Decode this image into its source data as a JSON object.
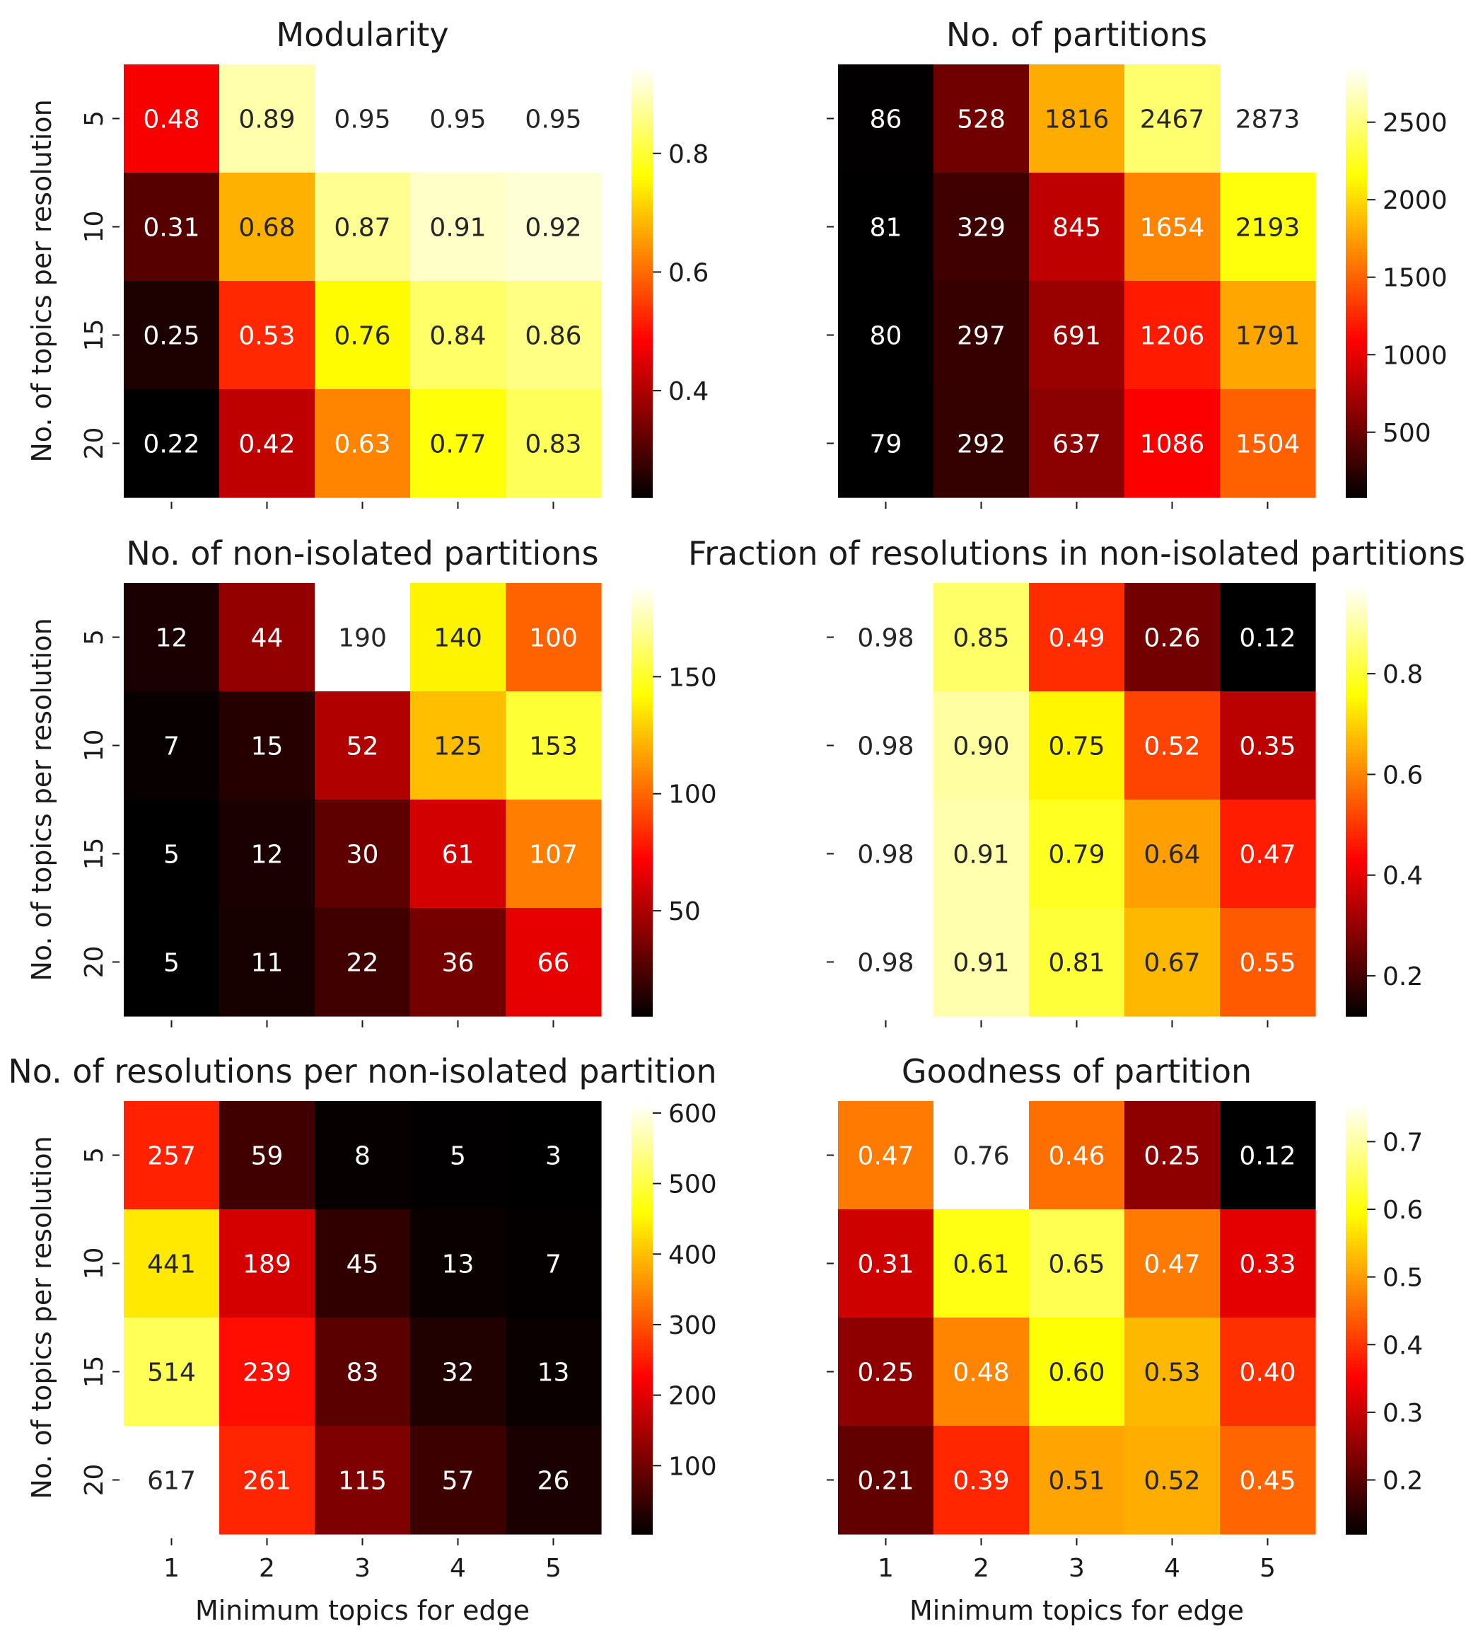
{
  "chart_data": [
    {
      "type": "heatmap",
      "title": "Modularity",
      "xlabel": "",
      "ylabel": "No. of topics per resolution",
      "x_categories": [
        "1",
        "2",
        "3",
        "4",
        "5"
      ],
      "y_categories": [
        "5",
        "10",
        "15",
        "20"
      ],
      "colormap": "hot",
      "values": [
        [
          0.48,
          0.89,
          0.95,
          0.95,
          0.95
        ],
        [
          0.31,
          0.68,
          0.87,
          0.91,
          0.92
        ],
        [
          0.25,
          0.53,
          0.76,
          0.84,
          0.86
        ],
        [
          0.22,
          0.42,
          0.63,
          0.77,
          0.83
        ]
      ],
      "labels": [
        [
          "0.48",
          "0.89",
          "0.95",
          "0.95",
          "0.95"
        ],
        [
          "0.31",
          "0.68",
          "0.87",
          "0.91",
          "0.92"
        ],
        [
          "0.25",
          "0.53",
          "0.76",
          "0.84",
          "0.86"
        ],
        [
          "0.22",
          "0.42",
          "0.63",
          "0.77",
          "0.83"
        ]
      ],
      "colorbar": {
        "range": [
          0.22,
          0.95
        ],
        "ticks": [
          0.4,
          0.6,
          0.8
        ],
        "tick_labels": [
          "0.4",
          "0.6",
          "0.8"
        ]
      }
    },
    {
      "type": "heatmap",
      "title": "No. of partitions",
      "xlabel": "",
      "ylabel": "",
      "x_categories": [
        "1",
        "2",
        "3",
        "4",
        "5"
      ],
      "y_categories": [
        "5",
        "10",
        "15",
        "20"
      ],
      "colormap": "hot",
      "values": [
        [
          86,
          528,
          1816,
          2467,
          2873
        ],
        [
          81,
          329,
          845,
          1654,
          2193
        ],
        [
          80,
          297,
          691,
          1206,
          1791
        ],
        [
          79,
          292,
          637,
          1086,
          1504
        ]
      ],
      "labels": [
        [
          "86",
          "528",
          "1816",
          "2467",
          "2873"
        ],
        [
          "81",
          "329",
          "845",
          "1654",
          "2193"
        ],
        [
          "80",
          "297",
          "691",
          "1206",
          "1791"
        ],
        [
          "79",
          "292",
          "637",
          "1086",
          "1504"
        ]
      ],
      "colorbar": {
        "range": [
          79,
          2873
        ],
        "ticks": [
          500,
          1000,
          1500,
          2000,
          2500
        ],
        "tick_labels": [
          "500",
          "1000",
          "1500",
          "2000",
          "2500"
        ]
      }
    },
    {
      "type": "heatmap",
      "title": "No. of non-isolated partitions",
      "xlabel": "",
      "ylabel": "No. of topics per resolution",
      "x_categories": [
        "1",
        "2",
        "3",
        "4",
        "5"
      ],
      "y_categories": [
        "5",
        "10",
        "15",
        "20"
      ],
      "colormap": "hot",
      "values": [
        [
          12,
          44,
          190,
          140,
          100
        ],
        [
          7,
          15,
          52,
          125,
          153
        ],
        [
          5,
          12,
          30,
          61,
          107
        ],
        [
          5,
          11,
          22,
          36,
          66
        ]
      ],
      "labels": [
        [
          "12",
          "44",
          "190",
          "140",
          "100"
        ],
        [
          "7",
          "15",
          "52",
          "125",
          "153"
        ],
        [
          "5",
          "12",
          "30",
          "61",
          "107"
        ],
        [
          "5",
          "11",
          "22",
          "36",
          "66"
        ]
      ],
      "colorbar": {
        "range": [
          5,
          190
        ],
        "ticks": [
          50,
          100,
          150
        ],
        "tick_labels": [
          "50",
          "100",
          "150"
        ]
      }
    },
    {
      "type": "heatmap",
      "title": "Fraction of resolutions in non-isolated partitions",
      "xlabel": "",
      "ylabel": "",
      "x_categories": [
        "1",
        "2",
        "3",
        "4",
        "5"
      ],
      "y_categories": [
        "5",
        "10",
        "15",
        "20"
      ],
      "colormap": "hot",
      "values": [
        [
          0.98,
          0.85,
          0.49,
          0.26,
          0.12
        ],
        [
          0.98,
          0.9,
          0.75,
          0.52,
          0.35
        ],
        [
          0.98,
          0.91,
          0.79,
          0.64,
          0.47
        ],
        [
          0.98,
          0.91,
          0.81,
          0.67,
          0.55
        ]
      ],
      "labels": [
        [
          "0.98",
          "0.85",
          "0.49",
          "0.26",
          "0.12"
        ],
        [
          "0.98",
          "0.90",
          "0.75",
          "0.52",
          "0.35"
        ],
        [
          "0.98",
          "0.91",
          "0.79",
          "0.64",
          "0.47"
        ],
        [
          "0.98",
          "0.91",
          "0.81",
          "0.67",
          "0.55"
        ]
      ],
      "colorbar": {
        "range": [
          0.12,
          0.98
        ],
        "ticks": [
          0.2,
          0.4,
          0.6,
          0.8
        ],
        "tick_labels": [
          "0.2",
          "0.4",
          "0.6",
          "0.8"
        ]
      }
    },
    {
      "type": "heatmap",
      "title": "No. of resolutions per non-isolated partition",
      "xlabel": "Minimum topics for edge",
      "ylabel": "No. of topics per resolution",
      "x_categories": [
        "1",
        "2",
        "3",
        "4",
        "5"
      ],
      "y_categories": [
        "5",
        "10",
        "15",
        "20"
      ],
      "colormap": "hot",
      "values": [
        [
          257,
          59,
          8,
          5,
          3
        ],
        [
          441,
          189,
          45,
          13,
          7
        ],
        [
          514,
          239,
          83,
          32,
          13
        ],
        [
          617,
          261,
          115,
          57,
          26
        ]
      ],
      "labels": [
        [
          "257",
          "59",
          "8",
          "5",
          "3"
        ],
        [
          "441",
          "189",
          "45",
          "13",
          "7"
        ],
        [
          "514",
          "239",
          "83",
          "32",
          "13"
        ],
        [
          "617",
          "261",
          "115",
          "57",
          "26"
        ]
      ],
      "colorbar": {
        "range": [
          3,
          617
        ],
        "ticks": [
          100,
          200,
          300,
          400,
          500,
          600
        ],
        "tick_labels": [
          "100",
          "200",
          "300",
          "400",
          "500",
          "600"
        ]
      }
    },
    {
      "type": "heatmap",
      "title": "Goodness of partition",
      "xlabel": "Minimum topics for edge",
      "ylabel": "",
      "x_categories": [
        "1",
        "2",
        "3",
        "4",
        "5"
      ],
      "y_categories": [
        "5",
        "10",
        "15",
        "20"
      ],
      "colormap": "hot",
      "values": [
        [
          0.47,
          0.76,
          0.46,
          0.25,
          0.12
        ],
        [
          0.31,
          0.61,
          0.65,
          0.47,
          0.33
        ],
        [
          0.25,
          0.48,
          0.6,
          0.53,
          0.4
        ],
        [
          0.21,
          0.39,
          0.51,
          0.52,
          0.45
        ]
      ],
      "labels": [
        [
          "0.47",
          "0.76",
          "0.46",
          "0.25",
          "0.12"
        ],
        [
          "0.31",
          "0.61",
          "0.65",
          "0.47",
          "0.33"
        ],
        [
          "0.25",
          "0.48",
          "0.60",
          "0.53",
          "0.40"
        ],
        [
          "0.21",
          "0.39",
          "0.51",
          "0.52",
          "0.45"
        ]
      ],
      "colorbar": {
        "range": [
          0.12,
          0.76
        ],
        "ticks": [
          0.2,
          0.3,
          0.4,
          0.5,
          0.6,
          0.7
        ],
        "tick_labels": [
          "0.2",
          "0.3",
          "0.4",
          "0.5",
          "0.6",
          "0.7"
        ]
      }
    }
  ]
}
